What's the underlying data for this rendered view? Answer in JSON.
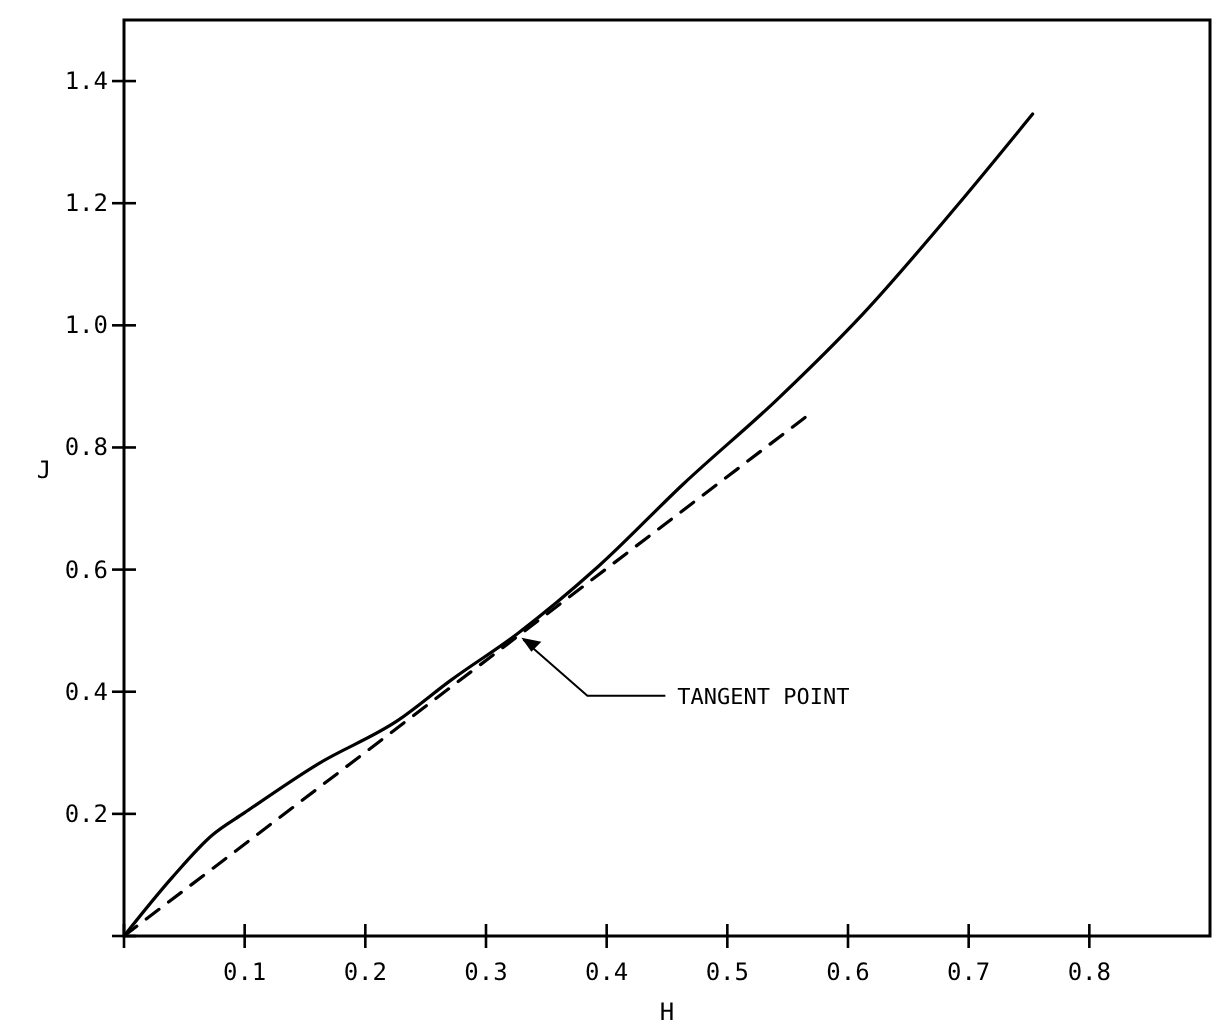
{
  "chart_data": {
    "type": "line",
    "xlabel": "H",
    "ylabel": "J",
    "xlim": [
      0,
      0.9
    ],
    "ylim": [
      0,
      1.5
    ],
    "xticks": [
      {
        "value": 0,
        "label": null
      },
      0.1,
      0.2,
      0.3,
      0.4,
      0.5,
      0.6,
      0.7,
      0.8
    ],
    "yticks": [
      {
        "value": 0,
        "label": null
      },
      0.2,
      0.4,
      0.6,
      0.8,
      {
        "value": 1,
        "label": "1.0"
      },
      1.2,
      1.4
    ],
    "grid": false,
    "marker": "none",
    "series": [
      {
        "color": "#000000",
        "line_style": "solid",
        "x": [
          0,
          0.04,
          0.073,
          0.1,
          0.161,
          0.227,
          0.271,
          0.326,
          0.393,
          0.464,
          0.541,
          0.613,
          0.69,
          0.753
        ],
        "values": [
          0,
          0.096,
          0.165,
          0.202,
          0.282,
          0.353,
          0.419,
          0.495,
          0.605,
          0.741,
          0.878,
          1.02,
          1.195,
          1.346
        ]
      },
      {
        "color": "#000000",
        "line_style": "dashed",
        "x": [
          0,
          0.569
        ],
        "values": [
          0,
          0.856
        ]
      }
    ],
    "annotations": [
      {
        "text": "TANGENT POINT",
        "x": 0.326,
        "y": 0.495
      }
    ]
  }
}
